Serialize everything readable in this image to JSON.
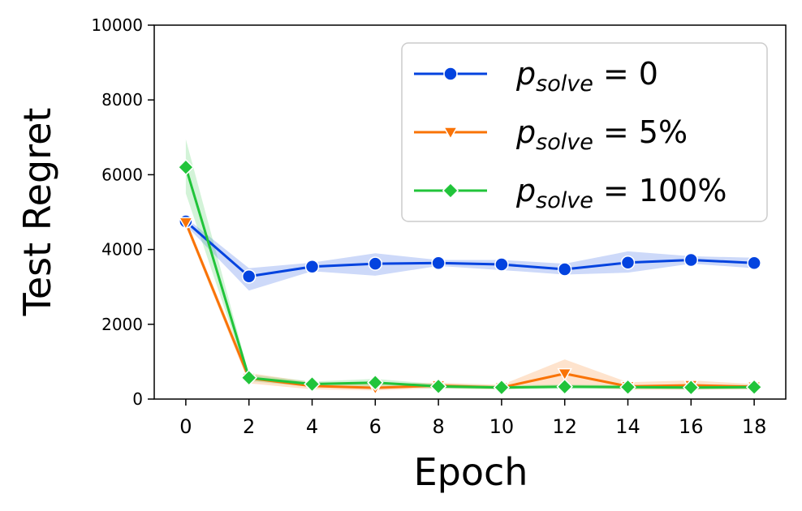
{
  "chart_data": {
    "type": "line",
    "xlabel": "Epoch",
    "ylabel": "Test Regret",
    "xlim": [
      -1,
      19
    ],
    "ylim": [
      0,
      10000
    ],
    "xticks": [
      0,
      2,
      4,
      6,
      8,
      10,
      12,
      14,
      16,
      18
    ],
    "yticks": [
      0,
      2000,
      4000,
      6000,
      8000,
      10000
    ],
    "grid": false,
    "legend_position": "top-right",
    "x": [
      0,
      2,
      4,
      6,
      8,
      10,
      12,
      14,
      16,
      18
    ],
    "series": [
      {
        "name_base": "p",
        "name_sub": "solve",
        "name_rest": " = 0",
        "color": "#0343df",
        "marker": "circle",
        "values": [
          4750,
          3280,
          3540,
          3620,
          3640,
          3600,
          3470,
          3650,
          3720,
          3640
        ],
        "ci_low": [
          4650,
          2900,
          3420,
          3300,
          3560,
          3450,
          3330,
          3380,
          3620,
          3500
        ],
        "ci_high": [
          4850,
          3500,
          3650,
          3900,
          3720,
          3720,
          3620,
          3950,
          3820,
          3780
        ]
      },
      {
        "name_base": "p",
        "name_sub": "solve",
        "name_rest": " = 5%",
        "color": "#f97306",
        "marker": "triangle-down",
        "values": [
          4720,
          560,
          350,
          300,
          360,
          310,
          680,
          340,
          370,
          330
        ],
        "ci_low": [
          4620,
          420,
          260,
          230,
          290,
          260,
          330,
          250,
          250,
          260
        ],
        "ci_high": [
          4820,
          700,
          450,
          400,
          440,
          380,
          1060,
          450,
          500,
          400
        ]
      },
      {
        "name_base": "p",
        "name_sub": "solve",
        "name_rest": " = 100%",
        "color": "#21c43a",
        "marker": "diamond",
        "values": [
          6200,
          570,
          400,
          440,
          340,
          310,
          330,
          320,
          310,
          320
        ],
        "ci_low": [
          5500,
          480,
          330,
          340,
          280,
          260,
          270,
          270,
          260,
          260
        ],
        "ci_high": [
          6950,
          660,
          470,
          540,
          400,
          360,
          390,
          370,
          360,
          380
        ]
      }
    ]
  }
}
